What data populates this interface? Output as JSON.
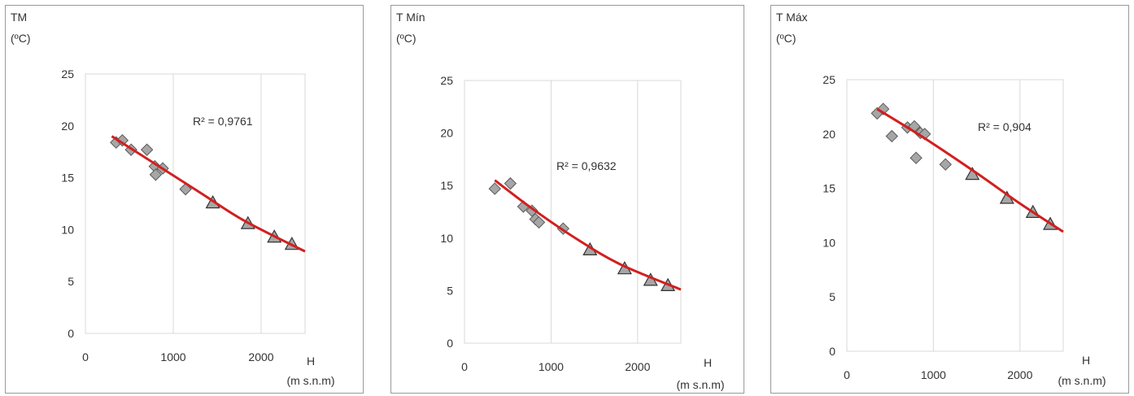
{
  "chart_data": [
    {
      "type": "scatter",
      "ylabel": [
        "TM",
        "(ºC)"
      ],
      "xlabel": [
        "H",
        "(m s.n.m)"
      ],
      "xlim": [
        0,
        2500
      ],
      "ylim": [
        0,
        25
      ],
      "xticks": [
        0,
        1000,
        2000
      ],
      "yticks": [
        0,
        5,
        10,
        15,
        20,
        25
      ],
      "grid": "vertical",
      "annotation": "R² = 0,9761",
      "series": [
        {
          "marker": "diamond",
          "color": "#a6a6a6",
          "points": [
            [
              350,
              18.4
            ],
            [
              420,
              18.6
            ],
            [
              520,
              17.7
            ],
            [
              700,
              17.7
            ],
            [
              790,
              16.1
            ],
            [
              800,
              15.3
            ],
            [
              880,
              15.9
            ],
            [
              1140,
              13.9
            ]
          ]
        },
        {
          "marker": "triangle",
          "color": "#a6a6a6",
          "points": [
            [
              1450,
              12.6
            ],
            [
              1850,
              10.6
            ],
            [
              2150,
              9.3
            ],
            [
              2350,
              8.6
            ]
          ]
        },
        {
          "type": "trendline",
          "color": "#d21f1f",
          "points": [
            [
              300,
              19.0
            ],
            [
              800,
              16.3
            ],
            [
              1300,
              13.6
            ],
            [
              1800,
              10.9
            ],
            [
              2500,
              7.9
            ]
          ]
        }
      ]
    },
    {
      "type": "scatter",
      "ylabel": [
        "T Mín",
        "(ºC)"
      ],
      "xlabel": [
        "H",
        "(m s.n.m)"
      ],
      "xlim": [
        0,
        2500
      ],
      "ylim": [
        0,
        25
      ],
      "xticks": [
        0,
        1000,
        2000
      ],
      "yticks": [
        0,
        5,
        10,
        15,
        20,
        25
      ],
      "grid": "vertical",
      "annotation": "R² = 0,9632",
      "series": [
        {
          "marker": "diamond",
          "color": "#a6a6a6",
          "points": [
            [
              350,
              14.7
            ],
            [
              530,
              15.2
            ],
            [
              680,
              13.0
            ],
            [
              780,
              12.6
            ],
            [
              820,
              11.8
            ],
            [
              860,
              11.5
            ],
            [
              1140,
              10.9
            ]
          ]
        },
        {
          "marker": "triangle",
          "color": "#a6a6a6",
          "points": [
            [
              1450,
              8.9
            ],
            [
              1850,
              7.1
            ],
            [
              2150,
              6.0
            ],
            [
              2350,
              5.5
            ]
          ]
        },
        {
          "type": "trendline",
          "color": "#d21f1f",
          "points": [
            [
              350,
              15.5
            ],
            [
              800,
              12.7
            ],
            [
              1300,
              9.9
            ],
            [
              1800,
              7.5
            ],
            [
              2500,
              5.1
            ]
          ]
        }
      ]
    },
    {
      "type": "scatter",
      "ylabel": [
        "T Máx",
        "(ºC)"
      ],
      "xlabel": [
        "H",
        "(m s.n.m)"
      ],
      "xlim": [
        0,
        2500
      ],
      "ylim": [
        0,
        25
      ],
      "xticks": [
        0,
        1000,
        2000
      ],
      "yticks": [
        0,
        5,
        10,
        15,
        20,
        25
      ],
      "grid": "vertical",
      "annotation": "R² = 0,904",
      "series": [
        {
          "marker": "diamond",
          "color": "#a6a6a6",
          "points": [
            [
              350,
              21.9
            ],
            [
              420,
              22.3
            ],
            [
              520,
              19.8
            ],
            [
              700,
              20.6
            ],
            [
              780,
              20.7
            ],
            [
              800,
              17.8
            ],
            [
              850,
              20.1
            ],
            [
              900,
              20.0
            ],
            [
              1140,
              17.2
            ]
          ]
        },
        {
          "marker": "triangle",
          "color": "#a6a6a6",
          "points": [
            [
              1450,
              16.3
            ],
            [
              1850,
              14.1
            ],
            [
              2150,
              12.8
            ],
            [
              2350,
              11.7
            ]
          ]
        },
        {
          "type": "trendline",
          "color": "#d21f1f",
          "points": [
            [
              350,
              22.3
            ],
            [
              900,
              19.6
            ],
            [
              1500,
              16.4
            ],
            [
              2000,
              13.6
            ],
            [
              2500,
              11.0
            ]
          ]
        }
      ]
    }
  ]
}
